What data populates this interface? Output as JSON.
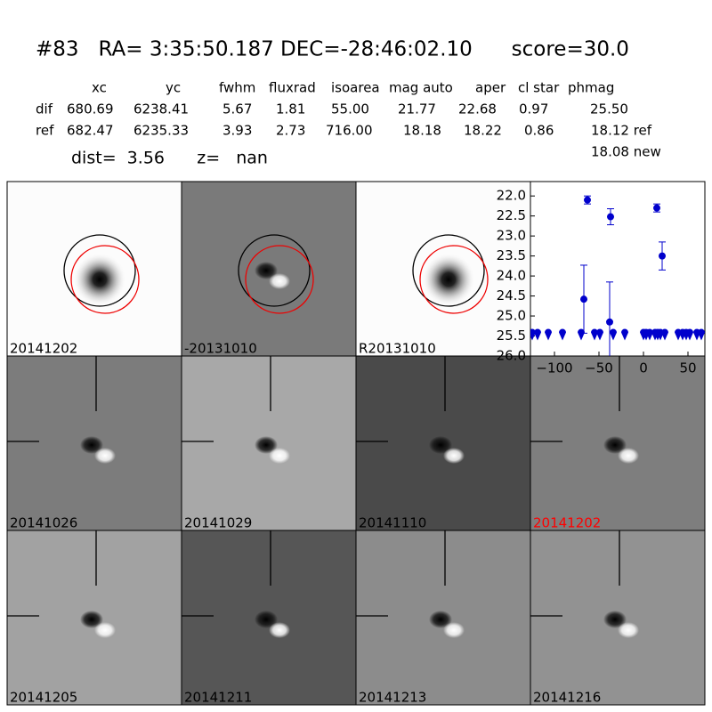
{
  "header": {
    "title": "#83   RA= 3:35:50.187 DEC=-28:46:02.10      score=30.0"
  },
  "table": {
    "columns": [
      "xc",
      "yc",
      "fwhm",
      "fluxrad",
      "isoarea",
      "mag auto",
      "aper",
      "cl star",
      "phmag"
    ],
    "rows": [
      [
        "dif",
        "680.69",
        "6238.41",
        "5.67",
        "1.81",
        "55.00",
        "21.77",
        "22.68",
        "0.97",
        "25.50"
      ],
      [
        "ref",
        "682.47",
        "6235.33",
        "3.93",
        "2.73",
        "716.00",
        "18.18",
        "18.22",
        "0.86",
        "18.12 ref"
      ]
    ],
    "extra": "18.08 new"
  },
  "dist": "dist=  3.56      z=   nan",
  "panels": [
    {
      "label": "20141202"
    },
    {
      "label": "-20131010"
    },
    {
      "label": "R20131010"
    },
    {
      "label": "20141026"
    },
    {
      "label": "20141029"
    },
    {
      "label": "20141110"
    },
    {
      "label": "20141202",
      "color": "#ff0000"
    },
    {
      "label": "20141205"
    },
    {
      "label": "20141211"
    },
    {
      "label": "20141213"
    },
    {
      "label": "20141216"
    }
  ],
  "chart_data": {
    "type": "scatter",
    "x": [
      -67,
      -63,
      -37,
      -38,
      15,
      21
    ],
    "values": [
      24.58,
      22.1,
      22.52,
      25.15,
      22.3,
      23.5
    ],
    "errors": [
      0.85,
      0.1,
      0.2,
      1.0,
      0.1,
      0.35
    ],
    "limits": {
      "x": [
        -125,
        -119,
        -107,
        -91,
        -70,
        -55,
        -49,
        -34,
        -21,
        0,
        3,
        7,
        13,
        16,
        19,
        24,
        39,
        44,
        48,
        52,
        60,
        65
      ],
      "values": [
        25.5,
        25.5,
        25.5,
        25.5,
        25.5,
        25.5,
        25.5,
        25.5,
        25.5,
        25.5,
        25.5,
        25.5,
        25.5,
        25.5,
        25.5,
        25.5,
        25.5,
        25.5,
        25.5,
        25.5,
        25.5,
        25.5
      ]
    },
    "color": "#0000cc",
    "xlim": [
      -127,
      69
    ],
    "ylim": [
      21.64,
      26.0
    ],
    "xticks": [
      {
        "value": -100,
        "label": "−100"
      },
      {
        "value": -50,
        "label": "−50"
      },
      0,
      50
    ],
    "yticks": [
      {
        "value": 22,
        "label": "22.0"
      },
      22.5,
      {
        "value": 23,
        "label": "23.0"
      },
      23.5,
      {
        "value": 24,
        "label": "24.0"
      },
      24.5,
      {
        "value": 25,
        "label": "25.0"
      },
      25.5,
      {
        "value": 26,
        "label": "26.0"
      }
    ]
  }
}
